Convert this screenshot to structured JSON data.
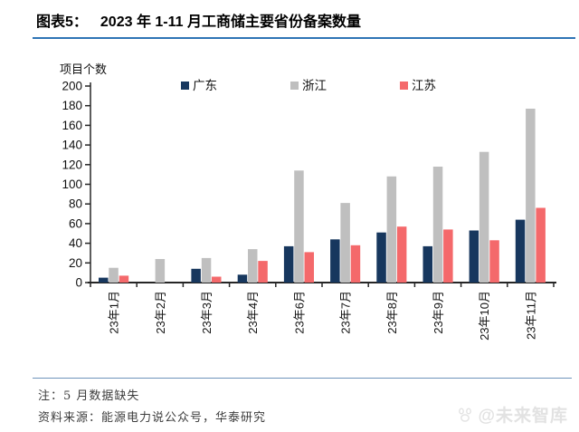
{
  "header": {
    "label": "图表5：",
    "title": "2023 年 1-11 月工商储主要省份备案数量"
  },
  "chart_data": {
    "type": "bar",
    "title": "2023 年 1-11 月工商储主要省份备案数量",
    "ylabel": "项目个数",
    "xlabel": "",
    "categories": [
      "23年1月",
      "23年2月",
      "23年3月",
      "23年4月",
      "23年6月",
      "23年7月",
      "23年8月",
      "23年9月",
      "23年10月",
      "23年11月"
    ],
    "series": [
      {
        "name": "广东",
        "color": "#17375E",
        "values": [
          5,
          0,
          14,
          8,
          37,
          44,
          51,
          37,
          53,
          64
        ]
      },
      {
        "name": "浙江",
        "color": "#BFBFBF",
        "values": [
          15,
          24,
          25,
          34,
          114,
          81,
          108,
          118,
          133,
          177
        ]
      },
      {
        "name": "江苏",
        "color": "#F4696B",
        "values": [
          7,
          0,
          6,
          22,
          31,
          38,
          57,
          54,
          43,
          76
        ]
      }
    ],
    "ylim": [
      0,
      200
    ],
    "y_ticks": [
      0,
      20,
      40,
      60,
      80,
      100,
      120,
      140,
      160,
      180,
      200
    ],
    "grid": false,
    "legend_position": "top-inside"
  },
  "footer": {
    "note": "注：5 月数据缺失",
    "source": "资料来源：能源电力说公众号，华泰研究"
  },
  "watermark": {
    "icon": "paw-icon",
    "text": "@未来智库"
  },
  "colors": {
    "accent_line": "#2E74B5",
    "divider": "#6E94BC",
    "axis": "#262626",
    "guangdong": "#17375E",
    "zhejiang": "#BFBFBF",
    "jiangsu": "#F4696B",
    "watermark": "#E2E2E2"
  }
}
